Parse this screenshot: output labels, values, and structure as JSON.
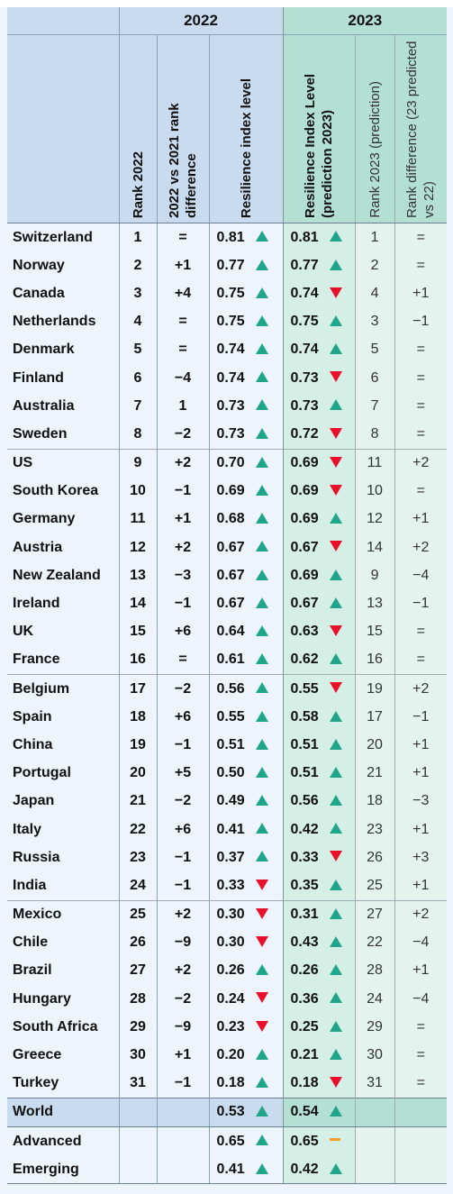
{
  "years": {
    "y2022": "2022",
    "y2023": "2023"
  },
  "headers": {
    "rank2022": "Rank 2022",
    "diff2022": "2022 vs 2021 rank difference",
    "res2022": "Resilience index level",
    "res2023": "Resilience Index Level (prediction 2023)",
    "rank2023": "Rank 2023 (prediction)",
    "diff2023": "Rank difference (23 predicted vs 22)"
  },
  "colors": {
    "up": "#1ea58a",
    "down": "#e8102a",
    "flat": "#f0a02a",
    "head2022": "#c9dcef",
    "head2023": "#b3e0d2"
  },
  "rows": [
    {
      "country": "Switzerland",
      "rank": "1",
      "diff": "=",
      "res22": "0.81",
      "t22": "up",
      "res23": "0.81",
      "t23": "up",
      "rank23": "1",
      "diff23": "="
    },
    {
      "country": "Norway",
      "rank": "2",
      "diff": "+1",
      "res22": "0.77",
      "t22": "up",
      "res23": "0.77",
      "t23": "up",
      "rank23": "2",
      "diff23": "="
    },
    {
      "country": "Canada",
      "rank": "3",
      "diff": "+4",
      "res22": "0.75",
      "t22": "up",
      "res23": "0.74",
      "t23": "down",
      "rank23": "4",
      "diff23": "+1"
    },
    {
      "country": "Netherlands",
      "rank": "4",
      "diff": "=",
      "res22": "0.75",
      "t22": "up",
      "res23": "0.75",
      "t23": "up",
      "rank23": "3",
      "diff23": "−1"
    },
    {
      "country": "Denmark",
      "rank": "5",
      "diff": "=",
      "res22": "0.74",
      "t22": "up",
      "res23": "0.74",
      "t23": "up",
      "rank23": "5",
      "diff23": "="
    },
    {
      "country": "Finland",
      "rank": "6",
      "diff": "−4",
      "res22": "0.74",
      "t22": "up",
      "res23": "0.73",
      "t23": "down",
      "rank23": "6",
      "diff23": "="
    },
    {
      "country": "Australia",
      "rank": "7",
      "diff": "1",
      "res22": "0.73",
      "t22": "up",
      "res23": "0.73",
      "t23": "up",
      "rank23": "7",
      "diff23": "="
    },
    {
      "country": "Sweden",
      "rank": "8",
      "diff": "−2",
      "res22": "0.73",
      "t22": "up",
      "res23": "0.72",
      "t23": "down",
      "rank23": "8",
      "diff23": "="
    },
    {
      "country": "US",
      "rank": "9",
      "diff": "+2",
      "res22": "0.70",
      "t22": "up",
      "res23": "0.69",
      "t23": "down",
      "rank23": "11",
      "diff23": "+2",
      "sep": true
    },
    {
      "country": "South Korea",
      "rank": "10",
      "diff": "−1",
      "res22": "0.69",
      "t22": "up",
      "res23": "0.69",
      "t23": "down",
      "rank23": "10",
      "diff23": "="
    },
    {
      "country": "Germany",
      "rank": "11",
      "diff": "+1",
      "res22": "0.68",
      "t22": "up",
      "res23": "0.69",
      "t23": "up",
      "rank23": "12",
      "diff23": "+1"
    },
    {
      "country": "Austria",
      "rank": "12",
      "diff": "+2",
      "res22": "0.67",
      "t22": "up",
      "res23": "0.67",
      "t23": "down",
      "rank23": "14",
      "diff23": "+2"
    },
    {
      "country": "New Zealand",
      "rank": "13",
      "diff": "−3",
      "res22": "0.67",
      "t22": "up",
      "res23": "0.69",
      "t23": "up",
      "rank23": "9",
      "diff23": "−4"
    },
    {
      "country": "Ireland",
      "rank": "14",
      "diff": "−1",
      "res22": "0.67",
      "t22": "up",
      "res23": "0.67",
      "t23": "up",
      "rank23": "13",
      "diff23": "−1"
    },
    {
      "country": "UK",
      "rank": "15",
      "diff": "+6",
      "res22": "0.64",
      "t22": "up",
      "res23": "0.63",
      "t23": "down",
      "rank23": "15",
      "diff23": "="
    },
    {
      "country": "France",
      "rank": "16",
      "diff": "=",
      "res22": "0.61",
      "t22": "up",
      "res23": "0.62",
      "t23": "up",
      "rank23": "16",
      "diff23": "="
    },
    {
      "country": "Belgium",
      "rank": "17",
      "diff": "−2",
      "res22": "0.56",
      "t22": "up",
      "res23": "0.55",
      "t23": "down",
      "rank23": "19",
      "diff23": "+2",
      "sep": true
    },
    {
      "country": "Spain",
      "rank": "18",
      "diff": "+6",
      "res22": "0.55",
      "t22": "up",
      "res23": "0.58",
      "t23": "up",
      "rank23": "17",
      "diff23": "−1"
    },
    {
      "country": "China",
      "rank": "19",
      "diff": "−1",
      "res22": "0.51",
      "t22": "up",
      "res23": "0.51",
      "t23": "up",
      "rank23": "20",
      "diff23": "+1"
    },
    {
      "country": "Portugal",
      "rank": "20",
      "diff": "+5",
      "res22": "0.50",
      "t22": "up",
      "res23": "0.51",
      "t23": "up",
      "rank23": "21",
      "diff23": "+1"
    },
    {
      "country": "Japan",
      "rank": "21",
      "diff": "−2",
      "res22": "0.49",
      "t22": "up",
      "res23": "0.56",
      "t23": "up",
      "rank23": "18",
      "diff23": "−3"
    },
    {
      "country": "Italy",
      "rank": "22",
      "diff": "+6",
      "res22": "0.41",
      "t22": "up",
      "res23": "0.42",
      "t23": "up",
      "rank23": "23",
      "diff23": "+1"
    },
    {
      "country": "Russia",
      "rank": "23",
      "diff": "−1",
      "res22": "0.37",
      "t22": "up",
      "res23": "0.33",
      "t23": "down",
      "rank23": "26",
      "diff23": "+3"
    },
    {
      "country": "India",
      "rank": "24",
      "diff": "−1",
      "res22": "0.33",
      "t22": "down",
      "res23": "0.35",
      "t23": "up",
      "rank23": "25",
      "diff23": "+1"
    },
    {
      "country": "Mexico",
      "rank": "25",
      "diff": "+2",
      "res22": "0.30",
      "t22": "down",
      "res23": "0.31",
      "t23": "up",
      "rank23": "27",
      "diff23": "+2",
      "sep": true
    },
    {
      "country": "Chile",
      "rank": "26",
      "diff": "−9",
      "res22": "0.30",
      "t22": "down",
      "res23": "0.43",
      "t23": "up",
      "rank23": "22",
      "diff23": "−4"
    },
    {
      "country": "Brazil",
      "rank": "27",
      "diff": "+2",
      "res22": "0.26",
      "t22": "up",
      "res23": "0.26",
      "t23": "up",
      "rank23": "28",
      "diff23": "+1"
    },
    {
      "country": "Hungary",
      "rank": "28",
      "diff": "−2",
      "res22": "0.24",
      "t22": "down",
      "res23": "0.36",
      "t23": "up",
      "rank23": "24",
      "diff23": "−4"
    },
    {
      "country": "South Africa",
      "rank": "29",
      "diff": "−9",
      "res22": "0.23",
      "t22": "down",
      "res23": "0.25",
      "t23": "up",
      "rank23": "29",
      "diff23": "="
    },
    {
      "country": "Greece",
      "rank": "30",
      "diff": "+1",
      "res22": "0.20",
      "t22": "up",
      "res23": "0.21",
      "t23": "up",
      "rank23": "30",
      "diff23": "="
    },
    {
      "country": "Turkey",
      "rank": "31",
      "diff": "−1",
      "res22": "0.18",
      "t22": "up",
      "res23": "0.18",
      "t23": "down",
      "rank23": "31",
      "diff23": "="
    }
  ],
  "world": {
    "country": "World",
    "res22": "0.53",
    "t22": "up",
    "res23": "0.54",
    "t23": "up"
  },
  "groups": [
    {
      "country": "Advanced",
      "res22": "0.65",
      "t22": "up",
      "res23": "0.65",
      "t23": "flat"
    },
    {
      "country": "Emerging",
      "res22": "0.41",
      "t22": "up",
      "res23": "0.42",
      "t23": "up"
    }
  ]
}
